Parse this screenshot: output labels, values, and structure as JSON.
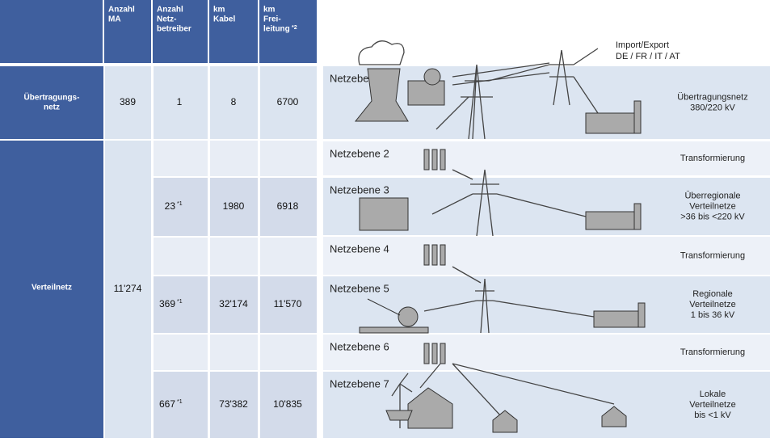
{
  "table": {
    "header": [
      [
        "Anzahl",
        "MA"
      ],
      [
        "Anzahl",
        "Netz-",
        "betreiber"
      ],
      [
        "km",
        "Kabel"
      ],
      [
        "km",
        "Frei-",
        "leitung"
      ]
    ],
    "header_note": "*2",
    "rows": [
      {
        "label": [
          "Übertragungs-",
          "netz"
        ],
        "ma": "389",
        "betreiber": "1",
        "kabel": "8",
        "freileitung": "6700"
      },
      {
        "label": [
          "Verteilnetz"
        ],
        "ma": "11'274",
        "sub": [
          {
            "betreiber": "23",
            "note": "*1",
            "kabel": "1980",
            "freileitung": "6918"
          },
          {
            "betreiber": "369",
            "note": "*1",
            "kabel": "32'174",
            "freileitung": "11'570"
          },
          {
            "betreiber": "667",
            "note": "*1",
            "kabel": "73'382",
            "freileitung": "10'835"
          }
        ]
      }
    ]
  },
  "diagram": {
    "import_export": [
      "Import/Export",
      "DE / FR / IT / AT"
    ],
    "levels": [
      {
        "name": "Netzebene 1",
        "desc": [
          "Übertragungsnetz",
          "380/220 kV"
        ]
      },
      {
        "name": "Netzebene 2",
        "desc": [
          "Transformierung"
        ]
      },
      {
        "name": "Netzebene 3",
        "desc": [
          "Überregionale",
          "Verteilnetze",
          ">36 bis <220 kV"
        ]
      },
      {
        "name": "Netzebene 4",
        "desc": [
          "Transformierung"
        ]
      },
      {
        "name": "Netzebene 5",
        "desc": [
          "Regionale",
          "Verteilnetze",
          "1 bis 36 kV"
        ]
      },
      {
        "name": "Netzebene 6",
        "desc": [
          "Transformierung"
        ]
      },
      {
        "name": "Netzebene 7",
        "desc": [
          "Lokale",
          "Verteilnetze",
          "bis <1 kV"
        ]
      }
    ]
  }
}
